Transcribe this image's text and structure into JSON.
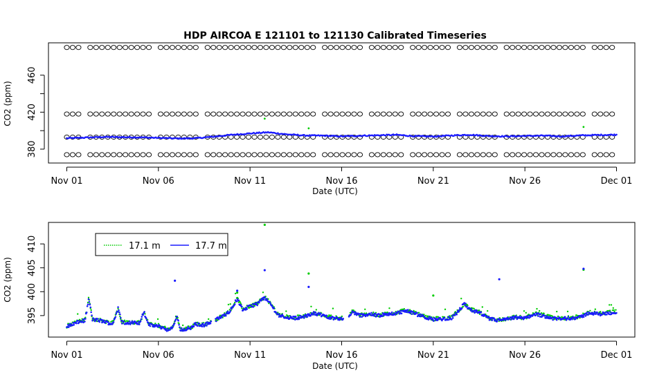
{
  "chart_data": [
    {
      "type": "scatter",
      "title": "HDP   AIRCOA  E   121101  to  121130   Calibrated Timeseries",
      "xlabel": "Date (UTC)",
      "ylabel": "CO2 (ppm)",
      "x_ticks": [
        "Nov 01",
        "Nov 06",
        "Nov 11",
        "Nov 16",
        "Nov 21",
        "Nov 26",
        "Dec 01"
      ],
      "x_tick_days": [
        0,
        5,
        10,
        15,
        20,
        25,
        30
      ],
      "xlim": [
        -1.0,
        31.0
      ],
      "y_ticks": [
        380,
        420,
        460
      ],
      "y_ticks_minor": [
        400,
        440
      ],
      "ylim": [
        365,
        495
      ],
      "grid": false,
      "calibration_levels": [
        374,
        393,
        418,
        490
      ],
      "calibration_gaps_days": [
        1.0,
        4.9,
        7.3,
        11.7,
        13.7,
        16.2,
        18.7,
        21.1,
        23.6,
        26.1,
        28.6
      ],
      "series": [
        {
          "color": "#1a1aff",
          "points": [
            [
              0,
              391.8
            ],
            [
              1,
              392.5
            ],
            [
              2,
              393.2
            ],
            [
              3,
              393.0
            ],
            [
              4,
              392.8
            ],
            [
              5,
              392.2
            ],
            [
              6,
              391.6
            ],
            [
              7,
              391.8
            ],
            [
              8,
              393.5
            ],
            [
              9,
              395.5
            ],
            [
              10,
              397.0
            ],
            [
              11,
              398.2
            ],
            [
              12,
              396.0
            ],
            [
              13,
              394.8
            ],
            [
              14,
              394.6
            ],
            [
              15,
              393.8
            ],
            [
              16,
              394.5
            ],
            [
              17,
              395.0
            ],
            [
              18,
              395.5
            ],
            [
              19,
              394.0
            ],
            [
              20,
              393.7
            ],
            [
              21,
              394.8
            ],
            [
              22,
              395.6
            ],
            [
              23,
              394.2
            ],
            [
              24,
              393.8
            ],
            [
              25,
              394.3
            ],
            [
              26,
              394.6
            ],
            [
              27,
              393.8
            ],
            [
              28,
              394.8
            ],
            [
              29,
              395.3
            ],
            [
              30,
              395.6
            ]
          ]
        },
        {
          "color": "#00cc00",
          "points": [
            [
              10.8,
              413.0
            ],
            [
              13.2,
              402.5
            ],
            [
              28.2,
              404.0
            ]
          ]
        }
      ]
    },
    {
      "type": "scatter",
      "title": "",
      "xlabel": "Date (UTC)",
      "ylabel": "CO2 (ppm)",
      "x_ticks": [
        "Nov 01",
        "Nov 06",
        "Nov 11",
        "Nov 16",
        "Nov 21",
        "Nov 26",
        "Dec 01"
      ],
      "x_tick_days": [
        0,
        5,
        10,
        15,
        20,
        25,
        30
      ],
      "xlim": [
        -1.0,
        31.0
      ],
      "y_ticks": [
        395,
        400,
        405,
        410
      ],
      "ylim": [
        390.5,
        414.5
      ],
      "grid": false,
      "legend_position": "top-left",
      "series": [
        {
          "name": "17.1 m",
          "color": "#00cc00",
          "line_style": "dotted"
        },
        {
          "name": "17.7 m",
          "color": "#1a1aff",
          "line_style": "solid"
        }
      ],
      "baseline": [
        [
          0,
          392.7
        ],
        [
          0.5,
          393.5
        ],
        [
          1,
          394.0
        ],
        [
          1.2,
          398.5
        ],
        [
          1.4,
          394.2
        ],
        [
          2,
          393.8
        ],
        [
          2.5,
          393.2
        ],
        [
          2.8,
          396.5
        ],
        [
          3,
          393.6
        ],
        [
          3.5,
          393.5
        ],
        [
          4,
          393.4
        ],
        [
          4.2,
          395.8
        ],
        [
          4.5,
          393.0
        ],
        [
          5,
          392.8
        ],
        [
          5.2,
          392.5
        ],
        [
          5.6,
          391.9
        ],
        [
          5.8,
          392.6
        ],
        [
          6,
          395.0
        ],
        [
          6.2,
          392.0
        ],
        [
          6.8,
          392.4
        ],
        [
          7.0,
          393.2
        ],
        [
          7.5,
          393.0
        ],
        [
          8,
          393.9
        ],
        [
          8.5,
          394.8
        ],
        [
          8.8,
          395.6
        ],
        [
          9,
          396.5
        ],
        [
          9.3,
          398.5
        ],
        [
          9.6,
          396.2
        ],
        [
          10,
          396.9
        ],
        [
          10.4,
          397.5
        ],
        [
          10.8,
          398.8
        ],
        [
          11.2,
          397.0
        ],
        [
          11.5,
          395.2
        ],
        [
          12,
          394.6
        ],
        [
          12.5,
          394.5
        ],
        [
          13,
          394.8
        ],
        [
          13.5,
          395.5
        ],
        [
          14,
          395.0
        ],
        [
          14.5,
          394.5
        ],
        [
          15,
          394.4
        ],
        [
          15.3,
          394.0
        ],
        [
          15.6,
          395.8
        ],
        [
          16,
          395.0
        ],
        [
          16.5,
          395.3
        ],
        [
          17,
          395.0
        ],
        [
          17.5,
          395.3
        ],
        [
          18,
          395.5
        ],
        [
          18.5,
          396.0
        ],
        [
          19,
          395.4
        ],
        [
          19.5,
          394.7
        ],
        [
          20,
          394.2
        ],
        [
          20.5,
          394.3
        ],
        [
          21,
          394.5
        ],
        [
          21.4,
          396.0
        ],
        [
          21.7,
          397.5
        ],
        [
          22,
          396.2
        ],
        [
          22.5,
          395.6
        ],
        [
          23,
          394.4
        ],
        [
          23.5,
          394.0
        ],
        [
          24,
          394.2
        ],
        [
          24.5,
          394.6
        ],
        [
          25,
          394.4
        ],
        [
          25.5,
          395.3
        ],
        [
          26,
          395.0
        ],
        [
          26.5,
          394.4
        ],
        [
          27,
          394.3
        ],
        [
          27.5,
          394.5
        ],
        [
          28,
          394.6
        ],
        [
          28.5,
          395.6
        ],
        [
          29,
          395.3
        ],
        [
          29.5,
          395.5
        ],
        [
          30,
          395.8
        ]
      ],
      "outliers": [
        [
          5.9,
          402.3
        ],
        [
          10.8,
          404.5
        ],
        [
          13.2,
          401.0
        ],
        [
          23.6,
          402.6
        ],
        [
          28.2,
          404.8
        ],
        [
          9.3,
          400.2
        ]
      ],
      "outliers_17_1m": [
        [
          10.8,
          414.0
        ],
        [
          13.2,
          403.8
        ],
        [
          28.2,
          404.6
        ],
        [
          20.0,
          399.2
        ],
        [
          9.3,
          399.8
        ]
      ]
    }
  ]
}
